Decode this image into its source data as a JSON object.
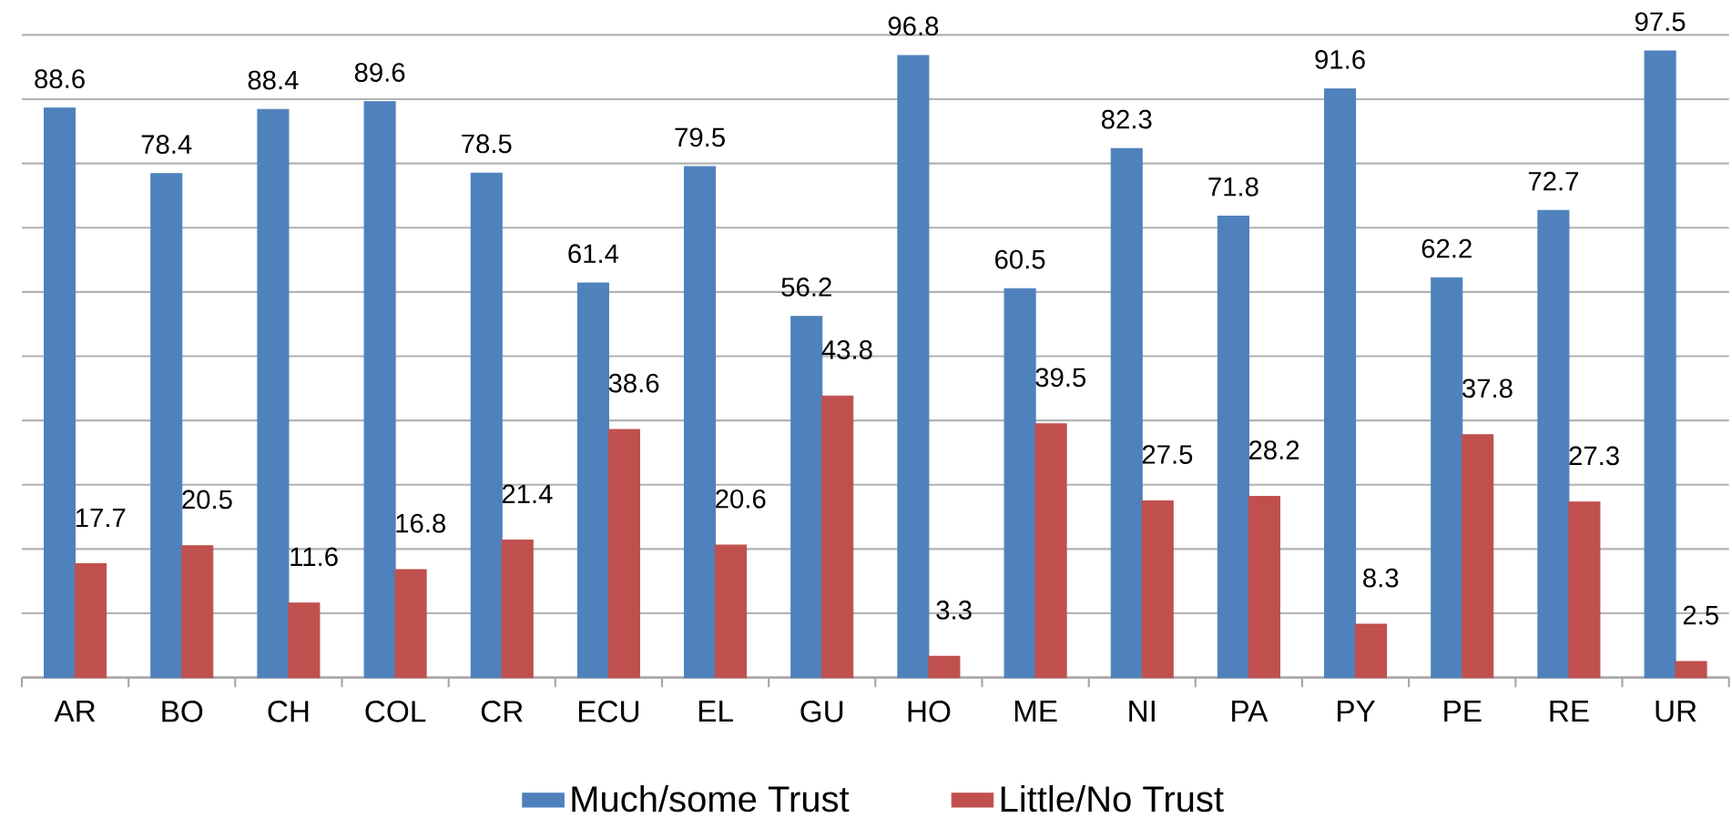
{
  "chart_data": {
    "type": "bar",
    "categories": [
      "AR",
      "BO",
      "CH",
      "COL",
      "CR",
      "ECU",
      "EL",
      "GU",
      "HO",
      "ME",
      "NI",
      "PA",
      "PY",
      "PE",
      "RE",
      "UR"
    ],
    "series": [
      {
        "name": "Much/some Trust",
        "color": "#4f81bd",
        "values": [
          88.6,
          78.4,
          88.4,
          89.6,
          78.5,
          61.4,
          79.5,
          56.2,
          96.8,
          60.5,
          82.3,
          71.8,
          91.6,
          62.2,
          72.7,
          97.5
        ]
      },
      {
        "name": "Little/No Trust",
        "color": "#c0504d",
        "values": [
          17.7,
          20.5,
          11.6,
          16.8,
          21.4,
          38.6,
          20.6,
          43.8,
          3.3,
          39.5,
          27.5,
          28.2,
          8.3,
          37.8,
          27.3,
          2.5
        ]
      }
    ],
    "tick_labels": "x",
    "grid": "y",
    "legend": "bottom",
    "data_labels": true
  }
}
